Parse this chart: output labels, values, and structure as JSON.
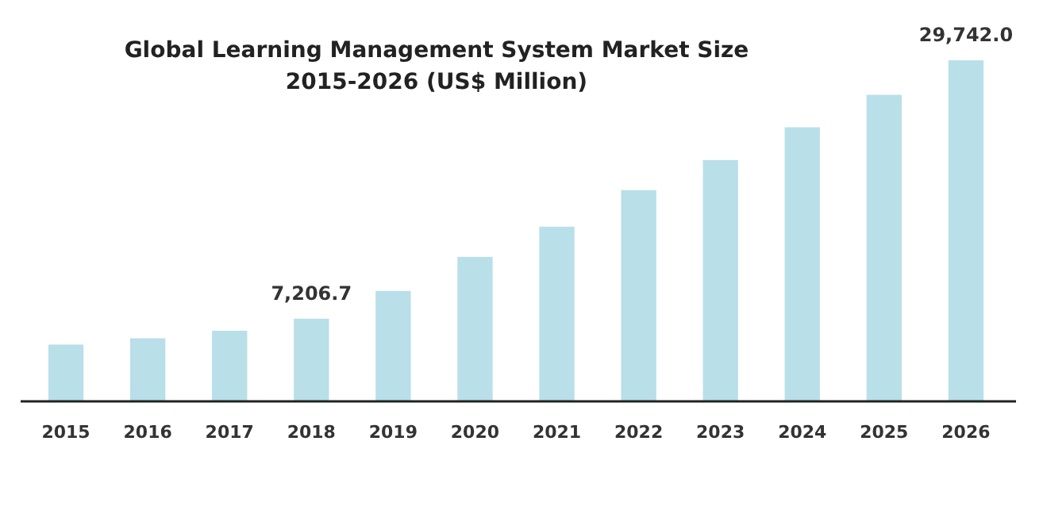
{
  "chart_data": {
    "type": "bar",
    "title": "Global Learning Management System Market Size\n2015-2026 (US$ Million)",
    "categories": [
      "2015",
      "2016",
      "2017",
      "2018",
      "2019",
      "2020",
      "2021",
      "2022",
      "2023",
      "2024",
      "2025",
      "2026"
    ],
    "values": [
      4950,
      5500,
      6160,
      7206.7,
      9630,
      12600,
      15230,
      18420,
      21040,
      23900,
      26730,
      29742.0
    ],
    "value_labels": [
      null,
      null,
      null,
      "7,206.7",
      null,
      null,
      null,
      null,
      null,
      null,
      null,
      "29,742.0"
    ],
    "color": "#b9dfe9"
  }
}
